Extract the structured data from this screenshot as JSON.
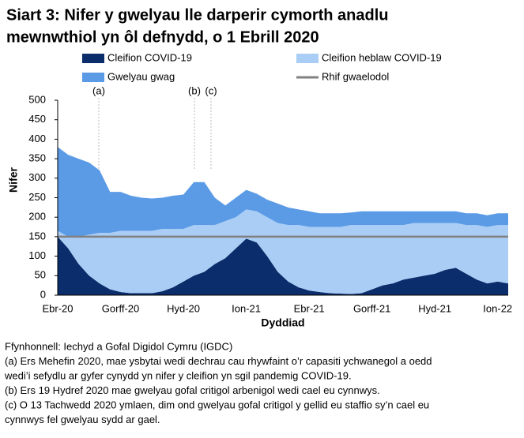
{
  "chart_data": {
    "type": "stacked-area",
    "title": [
      "Siart 3: Nifer y gwelyau lle darperir cymorth anadlu",
      "mewnwthiol yn ôl defnydd, o 1 Ebrill 2020"
    ],
    "x_label": "Dyddiad",
    "y_label": "Nifer",
    "categories": [
      "Ebr-20",
      null,
      null,
      null,
      null,
      null,
      "Gorff-20",
      null,
      null,
      null,
      null,
      null,
      "Hyd-20",
      null,
      null,
      null,
      null,
      null,
      "Ion-21",
      null,
      null,
      null,
      null,
      null,
      "Ebr-21",
      null,
      null,
      null,
      null,
      null,
      "Gorff-21",
      null,
      null,
      null,
      null,
      null,
      "Hyd-21",
      null,
      null,
      null,
      null,
      null,
      "Ion-22",
      null
    ],
    "series": [
      {
        "name": "Cleifion COVID-19",
        "color": "#0b2d6b",
        "values": [
          150,
          120,
          80,
          50,
          30,
          15,
          8,
          5,
          5,
          5,
          10,
          20,
          35,
          50,
          60,
          80,
          95,
          120,
          145,
          135,
          100,
          60,
          35,
          20,
          12,
          8,
          5,
          4,
          3,
          5,
          15,
          25,
          30,
          40,
          45,
          50,
          55,
          65,
          70,
          55,
          40,
          30,
          35,
          30
        ]
      },
      {
        "name": "Cleifion heblaw COVID-19",
        "color": "#a9cdf5",
        "values": [
          15,
          30,
          70,
          105,
          130,
          145,
          157,
          160,
          160,
          160,
          160,
          150,
          135,
          130,
          120,
          100,
          95,
          80,
          75,
          80,
          100,
          125,
          145,
          160,
          163,
          167,
          170,
          171,
          177,
          175,
          165,
          155,
          150,
          140,
          140,
          135,
          130,
          120,
          115,
          125,
          140,
          145,
          145,
          150
        ]
      },
      {
        "name": "Gwelyau gwag",
        "color": "#5b9be6",
        "values": [
          215,
          210,
          200,
          185,
          160,
          105,
          100,
          90,
          85,
          83,
          80,
          85,
          88,
          110,
          110,
          70,
          40,
          50,
          50,
          45,
          45,
          50,
          45,
          40,
          40,
          35,
          35,
          35,
          32,
          35,
          35,
          35,
          35,
          35,
          30,
          30,
          30,
          30,
          30,
          30,
          30,
          30,
          30,
          30
        ]
      }
    ],
    "baseline": {
      "name": "Rhif gwaelodol",
      "value": 150,
      "color": "#808080"
    },
    "annotations": [
      "(a)",
      "(b)",
      "(c)"
    ],
    "ylim": [
      0,
      500
    ],
    "yticks": [
      0,
      50,
      100,
      150,
      200,
      250,
      300,
      350,
      400,
      450,
      500
    ],
    "notes": [
      "Ffynhonnell: Iechyd a Gofal Digidol Cymru (IGDC)",
      "(a) Ers Mehefin 2020, mae ysbytai wedi dechrau cau rhywfaint o’r capasiti ychwanegol a oedd",
      "wedi’i sefydlu ar gyfer cynydd yn nifer y cleifion yn sgil pandemig COVID-19.",
      "(b) Ers 19 Hydref 2020 mae gwelyau gofal critigol arbenigol wedi cael eu cynnwys.",
      "(c) O 13 Tachwedd 2020 ymlaen, dim ond gwelyau gofal critigol y gellid eu staffio sy’n cael eu",
      "cynnwys fel gwelyau sydd ar gael."
    ]
  }
}
